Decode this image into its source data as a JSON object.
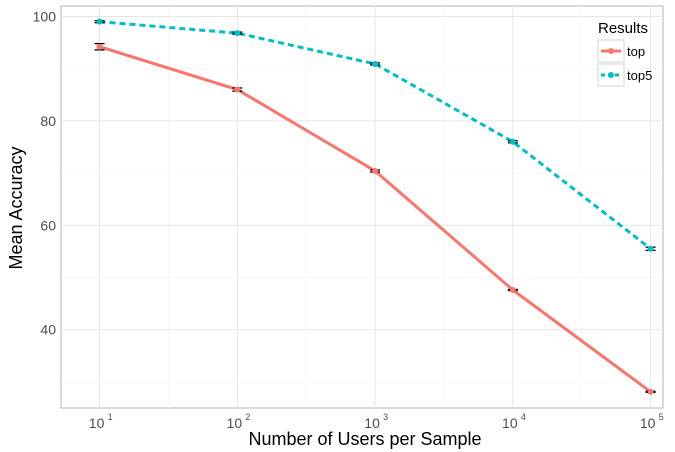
{
  "chart_data": {
    "type": "line",
    "xlabel": "Number of Users per Sample",
    "ylabel": "Mean Accuracy",
    "x": [
      1,
      2,
      3,
      4,
      5
    ],
    "x_tick_labels": [
      {
        "base": "10",
        "exp": "1"
      },
      {
        "base": "10",
        "exp": "2"
      },
      {
        "base": "10",
        "exp": "3"
      },
      {
        "base": "10",
        "exp": "4"
      },
      {
        "base": "10",
        "exp": "5"
      }
    ],
    "x_scale": "log10",
    "xlim": [
      0.72,
      5.09
    ],
    "ylim": [
      25,
      102
    ],
    "y_ticks": [
      40,
      60,
      80,
      100
    ],
    "y_tick_labels": [
      "40",
      "60",
      "80",
      "100"
    ],
    "grid": true,
    "legend": {
      "title": "Results",
      "position": "top-right"
    },
    "series": [
      {
        "name": "top",
        "color": "#F8766D",
        "linestyle": "solid",
        "values": [
          94.2,
          86.0,
          70.4,
          47.6,
          28.1
        ],
        "error": [
          0.6,
          0.3,
          0.2,
          0.1,
          0.1
        ]
      },
      {
        "name": "top5",
        "color": "#00BFC4",
        "linestyle": "dashed",
        "values": [
          99.0,
          96.8,
          90.9,
          76.0,
          55.5
        ],
        "error": [
          0.2,
          0.2,
          0.2,
          0.2,
          0.3
        ]
      }
    ]
  }
}
